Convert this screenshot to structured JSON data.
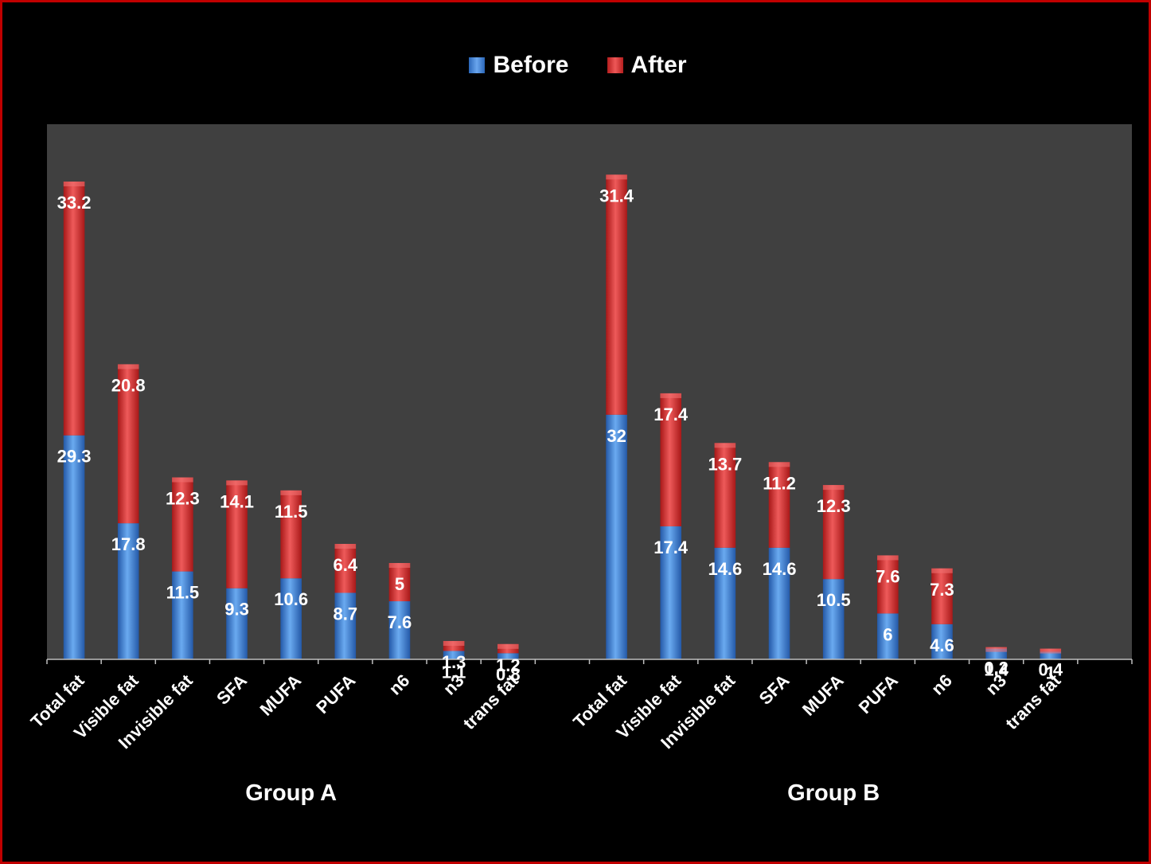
{
  "colors": {
    "before": "#3e7fd0",
    "after": "#d42a2a",
    "plot_bg": "#404040",
    "frame": "#c00000"
  },
  "chart_data": {
    "type": "bar",
    "stacked": true,
    "legend": {
      "position": "top",
      "items": [
        {
          "name": "Before"
        },
        {
          "name": "After"
        }
      ]
    },
    "categories": [
      "Total fat",
      "Visible fat",
      "Invisible fat",
      "SFA",
      "MUFA",
      "PUFA",
      "n6",
      "n3",
      "trans fat"
    ],
    "groups": [
      {
        "name": "Group A",
        "series": [
          {
            "name": "Before",
            "values": [
              29.3,
              17.8,
              11.5,
              9.3,
              10.6,
              8.7,
              7.6,
              1.1,
              0.8
            ]
          },
          {
            "name": "After",
            "values": [
              33.2,
              20.8,
              12.3,
              14.1,
              11.5,
              6.4,
              5,
              1.3,
              1.2
            ]
          }
        ]
      },
      {
        "name": "Group B",
        "series": [
          {
            "name": "Before",
            "values": [
              32,
              17.4,
              14.6,
              14.6,
              10.5,
              6,
              4.6,
              1.4,
              1
            ]
          },
          {
            "name": "After",
            "values": [
              31.4,
              17.4,
              13.7,
              11.2,
              12.3,
              7.6,
              7.3,
              0.2,
              0.4
            ]
          }
        ]
      }
    ],
    "grid": false
  }
}
